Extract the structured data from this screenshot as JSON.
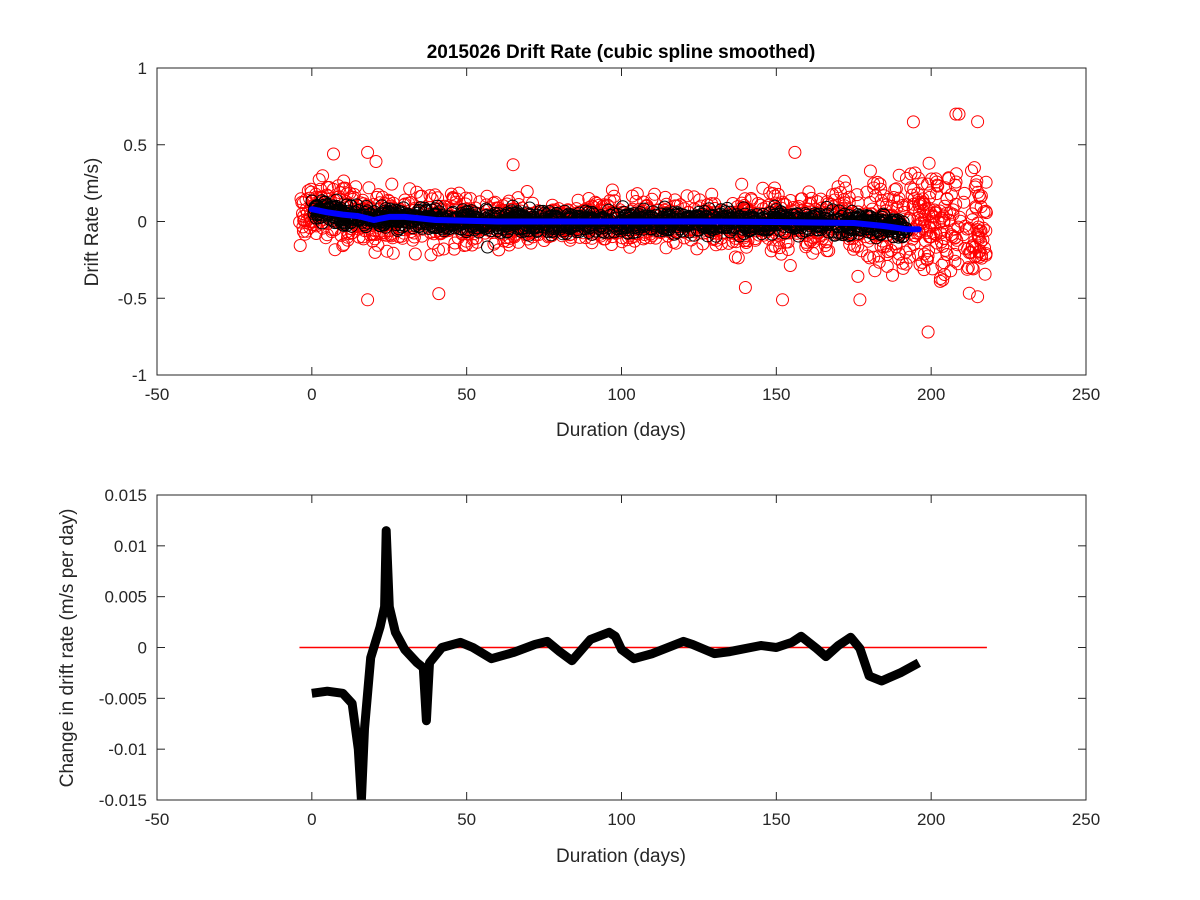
{
  "chart_data": [
    {
      "type": "scatter",
      "title": "2015026  Drift Rate (cubic spline smoothed)",
      "xlabel": "Duration (days)",
      "ylabel": "Drift Rate  (m/s)",
      "xlim": [
        -50,
        250
      ],
      "ylim": [
        -1,
        1
      ],
      "xticks": [
        -50,
        0,
        50,
        100,
        150,
        200,
        250
      ],
      "yticks": [
        -1,
        -0.5,
        0,
        0.5,
        1
      ],
      "xtick_labels": [
        "-50",
        "0",
        "50",
        "100",
        "150",
        "200",
        "250"
      ],
      "ytick_labels": [
        "-1",
        "-0.5",
        "0",
        "0.5",
        "1"
      ],
      "grid": false,
      "series": [
        {
          "marker": "circle-open",
          "color": "#ff0000",
          "x_range": [
            -4,
            218
          ],
          "spread_profile": {
            "x": [
              -4,
              20,
              60,
              120,
              170,
              200,
              218
            ],
            "sd": [
              0.09,
              0.1,
              0.07,
              0.07,
              0.11,
              0.17,
              0.15
            ]
          },
          "outliers": [
            {
              "x": 18,
              "y": 0.45
            },
            {
              "x": 7,
              "y": 0.44
            },
            {
              "x": 18,
              "y": -0.51
            },
            {
              "x": 41,
              "y": -0.47
            },
            {
              "x": 65,
              "y": 0.37
            },
            {
              "x": 152,
              "y": -0.51
            },
            {
              "x": 177,
              "y": -0.51
            },
            {
              "x": 199,
              "y": -0.72
            },
            {
              "x": 208,
              "y": 0.7
            },
            {
              "x": 209,
              "y": 0.7
            },
            {
              "x": 215,
              "y": 0.65
            },
            {
              "x": 215,
              "y": -0.49
            },
            {
              "x": 140,
              "y": -0.43
            },
            {
              "x": 156,
              "y": 0.45
            }
          ]
        },
        {
          "marker": "circle-open",
          "color": "#000000",
          "x_range": [
            0,
            192
          ],
          "spread": 0.035
        },
        {
          "type": "line",
          "color": "#0000ff",
          "x": [
            0,
            5,
            10,
            15,
            20,
            25,
            30,
            35,
            40,
            50,
            60,
            75,
            100,
            125,
            150,
            175,
            185,
            192,
            196
          ],
          "y": [
            0.08,
            0.06,
            0.045,
            0.035,
            0.01,
            0.03,
            0.03,
            0.02,
            0.01,
            0.005,
            0.0,
            0.0,
            0.0,
            0.0,
            -0.003,
            -0.01,
            -0.03,
            -0.05,
            -0.05
          ]
        }
      ]
    },
    {
      "type": "line",
      "xlabel": "Duration (days)",
      "ylabel": "Change in drift rate (m/s per day)",
      "xlim": [
        -50,
        250
      ],
      "ylim": [
        -0.015,
        0.015
      ],
      "xticks": [
        -50,
        0,
        50,
        100,
        150,
        200,
        250
      ],
      "yticks": [
        -0.015,
        -0.01,
        -0.005,
        0,
        0.005,
        0.01,
        0.015
      ],
      "xtick_labels": [
        "-50",
        "0",
        "50",
        "100",
        "150",
        "200",
        "250"
      ],
      "ytick_labels": [
        "-0.015",
        "-0.01",
        "-0.005",
        "0",
        "0.005",
        "0.01",
        "0.015"
      ],
      "grid": false,
      "series": [
        {
          "color": "#000000",
          "x": [
            0,
            5,
            10,
            13,
            15,
            16,
            17,
            19,
            22,
            23.5,
            24,
            25,
            27,
            30,
            34,
            36,
            37,
            38,
            42,
            48,
            52,
            58,
            65,
            72,
            76,
            80,
            84,
            90,
            96,
            98,
            100,
            104,
            110,
            120,
            123,
            130,
            135,
            145,
            150,
            155,
            158,
            163,
            166,
            170,
            174,
            177,
            180,
            184,
            190,
            196
          ],
          "y": [
            -0.0045,
            -0.0043,
            -0.0045,
            -0.0055,
            -0.01,
            -0.0155,
            -0.008,
            -0.001,
            0.002,
            0.004,
            0.0115,
            0.004,
            0.0015,
            -0.0002,
            -0.0015,
            -0.002,
            -0.0072,
            -0.0015,
            0.0,
            0.0005,
            0.0,
            -0.0011,
            -0.0005,
            0.0003,
            0.0006,
            -0.0004,
            -0.0013,
            0.0008,
            0.0015,
            0.0011,
            -0.0002,
            -0.0011,
            -0.0006,
            0.0006,
            0.0003,
            -0.0006,
            -0.0004,
            0.0002,
            0.0,
            0.0005,
            0.0011,
            -0.0001,
            -0.0009,
            0.0002,
            0.001,
            -0.0001,
            -0.0028,
            -0.0033,
            -0.0025,
            -0.0015
          ]
        },
        {
          "color": "#ff0000",
          "x": [
            -4,
            218
          ],
          "y": [
            0,
            0
          ]
        }
      ]
    }
  ]
}
